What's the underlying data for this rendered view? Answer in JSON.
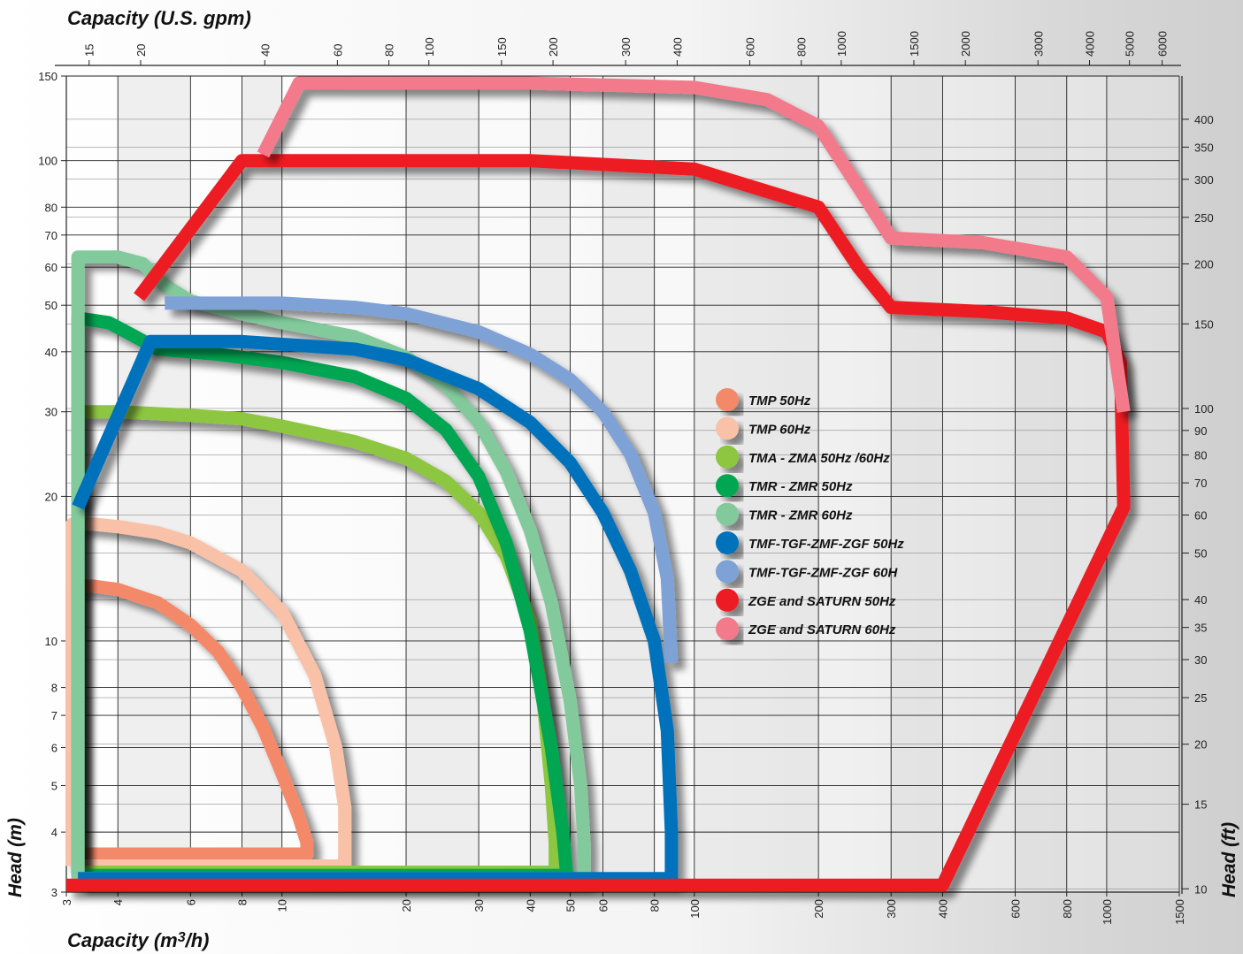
{
  "chart_data": {
    "type": "line",
    "xlabel_bottom": "Capacity (m",
    "xlabel_bottom_sup": "3",
    "xlabel_bottom_tail": "/h)",
    "xlabel_top": "Capacity (U.S. gpm)",
    "ylabel_left": "Head (m)",
    "ylabel_right": "Head (ft)",
    "x_scale": "log",
    "y_scale": "log",
    "xlim": [
      3,
      1500
    ],
    "ylim": [
      3,
      150
    ],
    "grid": true,
    "legend_position": "center-right",
    "x_ticks_bottom": [
      3,
      4,
      6,
      8,
      10,
      20,
      30,
      40,
      50,
      60,
      80,
      100,
      200,
      300,
      400,
      600,
      800,
      1000,
      1500
    ],
    "y_ticks_left": [
      3,
      4,
      5,
      6,
      7,
      8,
      10,
      20,
      30,
      40,
      50,
      60,
      70,
      80,
      100,
      150
    ],
    "x_ticks_top": [
      15,
      20,
      40,
      60,
      80,
      100,
      150,
      200,
      300,
      400,
      600,
      800,
      1000,
      1500,
      2000,
      3000,
      4000,
      5000,
      6000
    ],
    "y_ticks_right": [
      10,
      15,
      20,
      25,
      30,
      35,
      40,
      50,
      60,
      70,
      80,
      90,
      100,
      150,
      200,
      250,
      300,
      350,
      400
    ],
    "series": [
      {
        "name": "TMP 50Hz",
        "color": "#f4896b",
        "x": [
          3.1,
          3.1,
          3.5,
          4,
          5,
          6,
          7,
          8,
          9,
          10,
          11,
          11.5,
          11.5,
          3.1
        ],
        "y": [
          3.6,
          13,
          13,
          12.8,
          12,
          10.8,
          9.5,
          8,
          6.6,
          5.3,
          4.3,
          3.8,
          3.6,
          3.6
        ]
      },
      {
        "name": "TMP 60Hz",
        "color": "#f9c1a8",
        "x": [
          3.1,
          3.1,
          3.5,
          4,
          5,
          6,
          8,
          10,
          12,
          13.5,
          14.2,
          14.2,
          3.1
        ],
        "y": [
          3.4,
          17.5,
          17.5,
          17.3,
          16.8,
          16,
          14,
          11.5,
          8.5,
          6,
          4.5,
          3.4,
          3.4
        ]
      },
      {
        "name": "TMA - ZMA 50Hz /60Hz",
        "color": "#8dc63f",
        "x": [
          3.2,
          3.2,
          4,
          6,
          8,
          10,
          15,
          20,
          25,
          30,
          35,
          40,
          43,
          45,
          46,
          46,
          3.2
        ],
        "y": [
          3.3,
          30,
          30,
          29.5,
          29,
          28,
          26,
          24,
          21.5,
          18.5,
          15,
          11,
          7.5,
          5,
          3.8,
          3.3,
          3.3
        ]
      },
      {
        "name": "TMR - ZMR 50Hz",
        "color": "#00a651",
        "x": [
          3.2,
          3.2,
          3.8,
          4.3,
          5,
          7,
          10,
          15,
          20,
          25,
          30,
          35,
          40,
          45,
          48,
          49,
          49,
          3.2
        ],
        "y": [
          3.25,
          47,
          46,
          43.5,
          40.5,
          39.5,
          38,
          35.5,
          32,
          27.5,
          22,
          16,
          10.5,
          6,
          4,
          3.3,
          3.25,
          3.25
        ]
      },
      {
        "name": "TMR - ZMR 60Hz",
        "color": "#82ca9c",
        "x": [
          3.2,
          3.2,
          4,
          4.6,
          5.2,
          6,
          8,
          10,
          15,
          20,
          25,
          30,
          35,
          40,
          45,
          50,
          53,
          54,
          54,
          3.2
        ],
        "y": [
          3.2,
          63,
          63,
          61,
          55,
          51,
          48,
          46,
          43,
          39,
          34,
          28.5,
          22.5,
          17,
          12,
          7.5,
          5,
          3.8,
          3.2,
          3.2
        ]
      },
      {
        "name": "TMF-TGF-ZMF-ZGF 50Hz",
        "color": "#0072bc",
        "x": [
          3.2,
          4.8,
          8,
          15,
          20,
          30,
          40,
          50,
          60,
          70,
          80,
          86,
          88,
          88,
          3.2
        ],
        "y": [
          19,
          42,
          42,
          40.5,
          38.5,
          33.5,
          28.5,
          23.5,
          18.5,
          14,
          10,
          6.5,
          4,
          3.2,
          3.2
        ]
      },
      {
        "name": "TMF-TGF-ZMF-ZGF 60H",
        "color": "#7ea1d6",
        "x": [
          5.2,
          6,
          8,
          10,
          15,
          20,
          30,
          40,
          50,
          60,
          70,
          80,
          86,
          88
        ],
        "y": [
          50.5,
          50.5,
          50.5,
          50.5,
          49.5,
          48,
          44,
          39.5,
          35,
          30,
          24.5,
          18.5,
          13.5,
          9
        ]
      },
      {
        "name": "ZGE and SATURN 50Hz",
        "color": "#ed1c24",
        "x": [
          3,
          400,
          1100,
          1080,
          1000,
          800,
          500,
          300,
          250,
          200,
          100,
          40,
          8,
          4.5
        ],
        "y": [
          3.1,
          3.1,
          19,
          38,
          44,
          47,
          48.5,
          49.5,
          60,
          80,
          96,
          100,
          100,
          52
        ]
      },
      {
        "name": "ZGE and SATURN 60Hz",
        "color": "#f37a8a",
        "x": [
          9,
          11,
          40,
          100,
          150,
          200,
          250,
          300,
          500,
          800,
          1000,
          1100
        ],
        "y": [
          103,
          145,
          145,
          142,
          134,
          118,
          88,
          69,
          67.5,
          63,
          52,
          30
        ]
      }
    ]
  }
}
